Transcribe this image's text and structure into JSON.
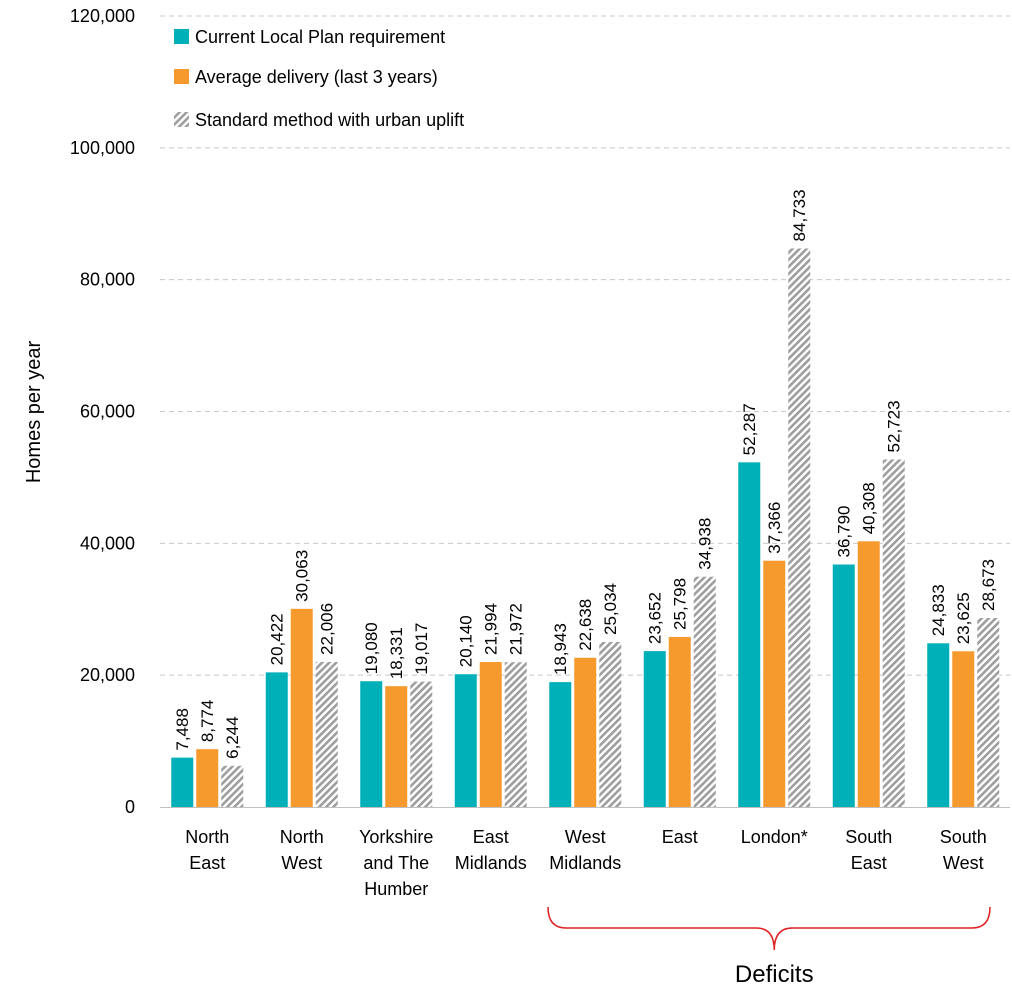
{
  "chart_data": {
    "type": "bar",
    "ylabel": "Homes per year",
    "ylim": [
      0,
      120000
    ],
    "yticks": [
      0,
      20000,
      40000,
      60000,
      80000,
      100000,
      120000
    ],
    "ytick_labels": [
      "0",
      "20,000",
      "40,000",
      "60,000",
      "80,000",
      "100,000",
      "120,000"
    ],
    "grid": true,
    "legend_position": "top-left",
    "categories": [
      [
        "North",
        "East"
      ],
      [
        "North",
        "West"
      ],
      [
        "Yorkshire",
        "and The",
        "Humber"
      ],
      [
        "East",
        "Midlands"
      ],
      [
        "West",
        "Midlands"
      ],
      [
        "East"
      ],
      [
        "London*"
      ],
      [
        "South",
        "East"
      ],
      [
        "South",
        "West"
      ]
    ],
    "series": [
      {
        "name": "Current Local Plan requirement",
        "color": "#00B0B9",
        "values": [
          7488,
          20422,
          19080,
          20140,
          18943,
          23652,
          52287,
          36790,
          24833
        ],
        "labels": [
          "7,488",
          "20,422",
          "19,080",
          "20,140",
          "18,943",
          "23,652",
          "52,287",
          "36,790",
          "24,833"
        ]
      },
      {
        "name": "Average delivery (last 3 years)",
        "color": "#F79A2E",
        "values": [
          8774,
          30063,
          18331,
          21994,
          22638,
          25798,
          37366,
          40308,
          23625
        ],
        "labels": [
          "8,774",
          "30,063",
          "18,331",
          "21,994",
          "22,638",
          "25,798",
          "37,366",
          "40,308",
          "23,625"
        ]
      },
      {
        "name": "Standard method with urban uplift",
        "color": "#9E9E9E",
        "pattern": "hatched",
        "values": [
          6244,
          22006,
          19017,
          21972,
          25034,
          34938,
          84733,
          52723,
          28673
        ],
        "labels": [
          "6,244",
          "22,006",
          "19,017",
          "21,972",
          "25,034",
          "34,938",
          "84,733",
          "52,723",
          "28,673"
        ]
      }
    ],
    "annotations": [
      {
        "text": "Deficits",
        "spans_categories": [
          4,
          8
        ],
        "bracket_color": "#E02020"
      }
    ]
  }
}
